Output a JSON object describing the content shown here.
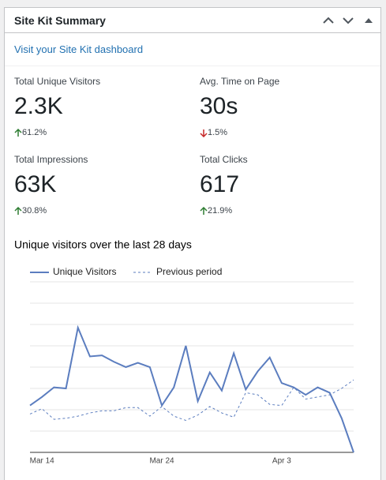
{
  "widget": {
    "title": "Site Kit Summary",
    "link": "Visit your Site Kit dashboard",
    "metrics": [
      {
        "label": "Total Unique Visitors",
        "value": "2.3K",
        "change": "61.2%",
        "direction": "up"
      },
      {
        "label": "Avg. Time on Page",
        "value": "30s",
        "change": "1.5%",
        "direction": "down"
      },
      {
        "label": "Total Impressions",
        "value": "63K",
        "change": "30.8%",
        "direction": "up"
      },
      {
        "label": "Total Clicks",
        "value": "617",
        "change": "21.9%",
        "direction": "up"
      }
    ]
  },
  "chart_data": {
    "type": "line",
    "title": "Unique visitors over the last 28 days",
    "categories": [
      null,
      "Mar 14",
      null,
      null,
      null,
      null,
      null,
      null,
      null,
      null,
      null,
      "Mar 24",
      null,
      null,
      null,
      null,
      null,
      null,
      null,
      null,
      null,
      "Apr 3",
      null,
      null,
      null,
      null,
      null,
      null
    ],
    "series": [
      {
        "name": "Unique Visitors",
        "color": "#5b7dbf",
        "dashed": false,
        "values": [
          44,
          52,
          61,
          60,
          117,
          90,
          91,
          85,
          80,
          84,
          80,
          44,
          61,
          100,
          48,
          75,
          58,
          93,
          59,
          76,
          89,
          65,
          61,
          54,
          61,
          56,
          32,
          0
        ]
      },
      {
        "name": "Previous period",
        "color": "#5b7dbf",
        "dashed": true,
        "values": [
          36,
          41,
          31,
          32,
          34,
          37,
          39,
          39,
          42,
          42,
          34,
          43,
          34,
          30,
          35,
          43,
          37,
          33,
          56,
          54,
          45,
          44,
          61,
          50,
          52,
          54,
          60,
          68
        ]
      }
    ],
    "ylim": [
      0,
      160
    ],
    "yticks": [
      0,
      20,
      40,
      60,
      80,
      100,
      120,
      140,
      160
    ],
    "grid": true
  }
}
